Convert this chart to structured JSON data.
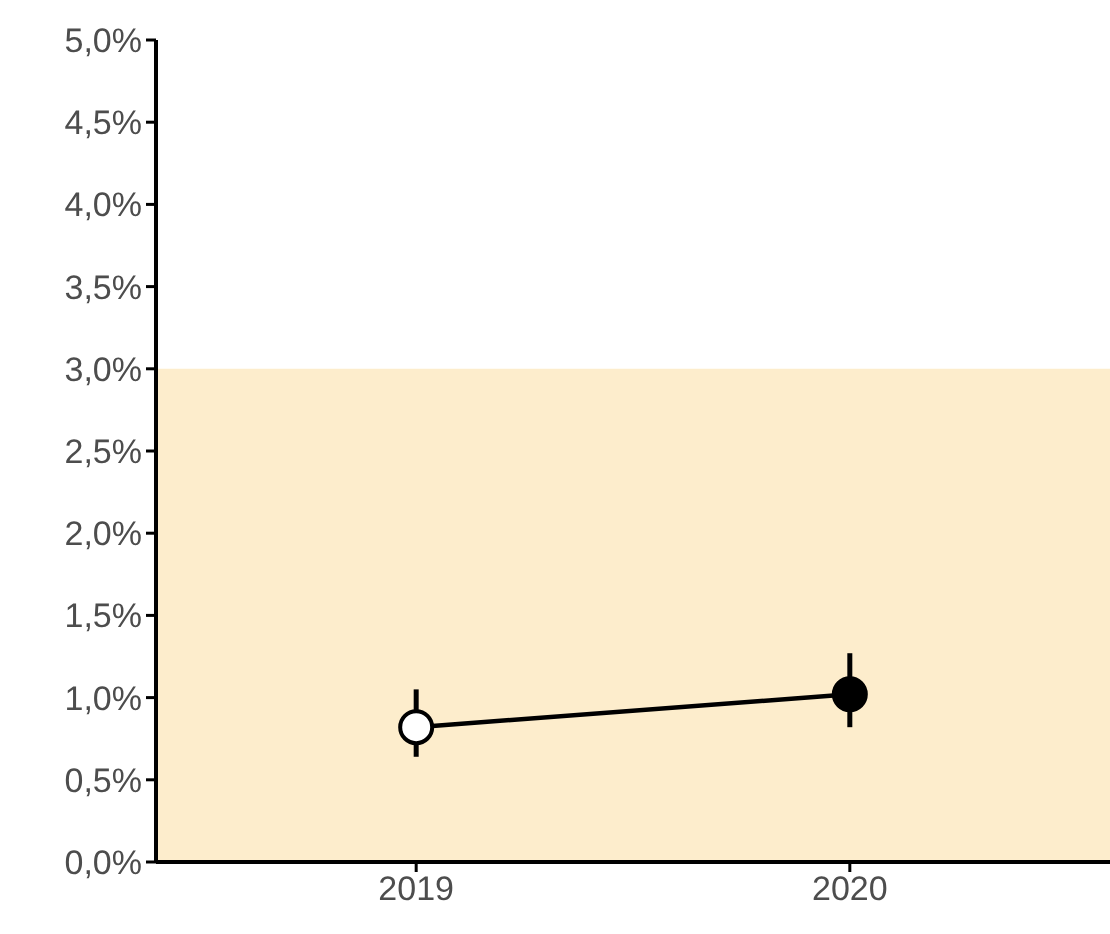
{
  "chart_data": {
    "type": "line",
    "x": [
      2019,
      2020
    ],
    "values": [
      0.82,
      1.02
    ],
    "errors": [
      [
        0.64,
        1.05
      ],
      [
        0.82,
        1.27
      ]
    ],
    "color": "#000000",
    "colors": [
      "#ffffff",
      "#000000"
    ],
    "marker": "circle",
    "line_style": "solid",
    "grid": false,
    "legend": false,
    "xlim": [
      2018.4,
      2020.6
    ],
    "xticks": [
      2019,
      2020
    ],
    "ylim": [
      0,
      5
    ],
    "yticks": [
      {
        "value": 0,
        "label": "0,0%"
      },
      {
        "value": 0.5,
        "label": "0,5%"
      },
      {
        "value": 1,
        "label": "1,0%"
      },
      {
        "value": 1.5,
        "label": "1,5%"
      },
      {
        "value": 2,
        "label": "2,0%"
      },
      {
        "value": 2.5,
        "label": "2,5%"
      },
      {
        "value": 3,
        "label": "3,0%"
      },
      {
        "value": 3.5,
        "label": "3,5%"
      },
      {
        "value": 4,
        "label": "4,0%"
      },
      {
        "value": 4.5,
        "label": "4,5%"
      },
      {
        "value": 5,
        "label": "5,0%"
      }
    ],
    "bands": [
      {
        "axis": "y",
        "from": 0,
        "to": 3,
        "color": "#fdedcc"
      }
    ]
  }
}
